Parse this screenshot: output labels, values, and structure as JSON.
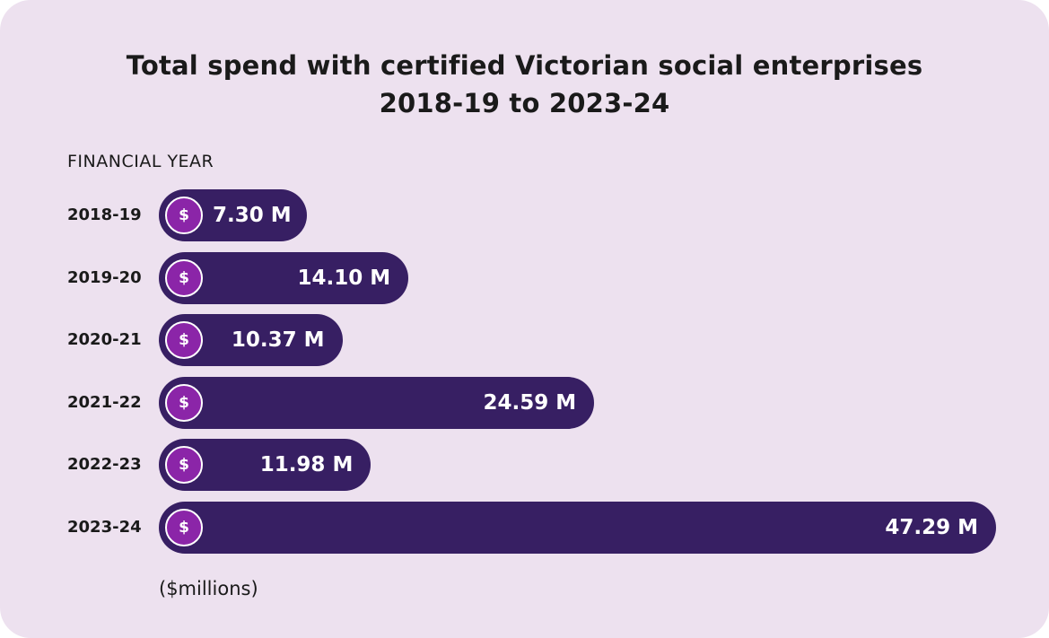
{
  "chart_data": {
    "type": "bar",
    "orientation": "horizontal",
    "title": "Total spend with certified Victorian social enterprises",
    "subtitle": "2018-19 to 2023-24",
    "ylabel": "FINANCIAL YEAR",
    "xlabel": "($millions)",
    "categories": [
      "2018-19",
      "2019-20",
      "2020-21",
      "2021-22",
      "2022-23",
      "2023-24"
    ],
    "values": [
      7.3,
      14.1,
      10.37,
      24.59,
      11.98,
      47.29
    ],
    "value_labels": [
      "7.30 M",
      "14.10 M",
      "10.37 M",
      "24.59 M",
      "11.98 M",
      "47.29 M"
    ],
    "icon": "dollar-coin-icon",
    "icon_glyph": "$",
    "grid": false,
    "colors": {
      "bar": "#371f63",
      "coin": "#8b25a8",
      "background": "#ede1ef"
    }
  }
}
